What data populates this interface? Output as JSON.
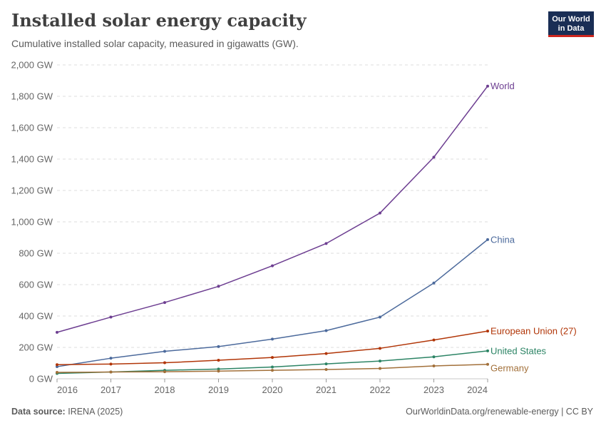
{
  "header": {
    "title": "Installed solar energy capacity",
    "subtitle": "Cumulative installed solar capacity, measured in gigawatts (GW).",
    "logo_line1": "Our World",
    "logo_line2": "in Data"
  },
  "footer": {
    "source_label": "Data source:",
    "source_value": "IRENA (2025)",
    "right_text": "OurWorldinData.org/renewable-energy | CC BY"
  },
  "chart_data": {
    "type": "line",
    "title": "Installed solar energy capacity",
    "xlabel": "",
    "ylabel": "",
    "x": [
      2016,
      2017,
      2018,
      2019,
      2020,
      2021,
      2022,
      2023,
      2024
    ],
    "x_tick_labels": [
      "2016",
      "2017",
      "2018",
      "2019",
      "2020",
      "2021",
      "2022",
      "2023",
      "2024"
    ],
    "y_ticks": [
      0,
      200,
      400,
      600,
      800,
      1000,
      1200,
      1400,
      1600,
      1800,
      2000
    ],
    "y_tick_labels": [
      "0 GW",
      "200 GW",
      "400 GW",
      "600 GW",
      "800 GW",
      "1,000 GW",
      "1,200 GW",
      "1,400 GW",
      "1,600 GW",
      "1,800 GW",
      "2,000 GW"
    ],
    "ylim": [
      0,
      2000
    ],
    "grid": "horizontal dashed",
    "legend": "inline labels at line ends",
    "series": [
      {
        "name": "World",
        "color": "#6d3e91",
        "values": [
          296,
          393,
          486,
          589,
          720,
          862,
          1056,
          1412,
          1865
        ]
      },
      {
        "name": "China",
        "color": "#4c6a9c",
        "values": [
          77,
          131,
          175,
          205,
          253,
          307,
          393,
          610,
          887
        ]
      },
      {
        "name": "European Union (27)",
        "color": "#b13507",
        "values": [
          90,
          94,
          102,
          118,
          136,
          161,
          194,
          247,
          304
        ]
      },
      {
        "name": "United States",
        "color": "#2c8465",
        "values": [
          34,
          43,
          54,
          62,
          75,
          95,
          113,
          140,
          178
        ]
      },
      {
        "name": "Germany",
        "color": "#a2703a",
        "values": [
          41,
          43,
          45,
          49,
          54,
          59,
          66,
          82,
          92
        ]
      }
    ]
  }
}
